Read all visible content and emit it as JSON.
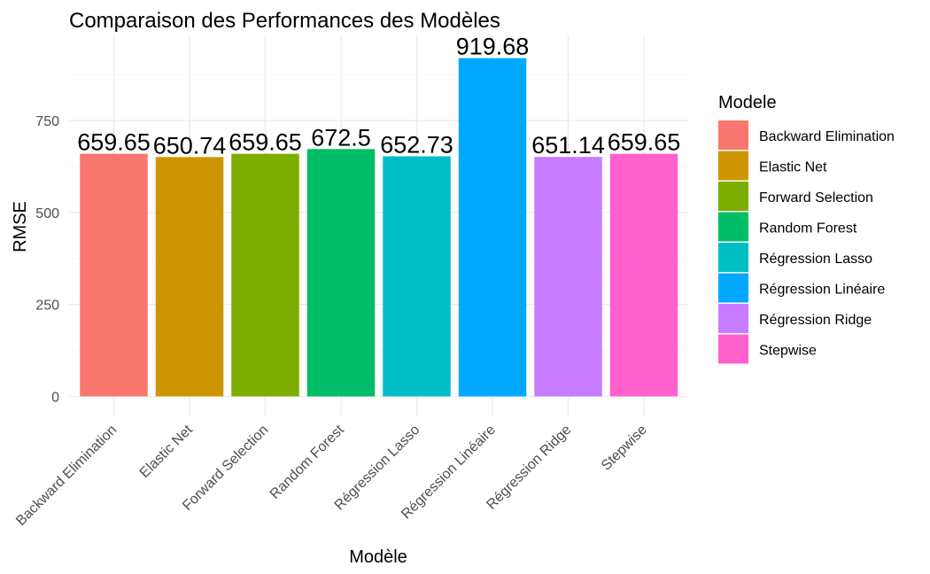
{
  "chart_data": {
    "type": "bar",
    "title": "Comparaison des Performances des Modèles",
    "xlabel": "Modèle",
    "ylabel": "RMSE",
    "categories": [
      "Backward Elimination",
      "Elastic Net",
      "Forward Selection",
      "Random Forest",
      "Régression Lasso",
      "Régression Linéaire",
      "Régression Ridge",
      "Stepwise"
    ],
    "values": [
      659.65,
      650.74,
      659.65,
      672.5,
      652.73,
      919.68,
      651.14,
      659.65
    ],
    "data_labels": [
      "659.65",
      "650.74",
      "659.65",
      "672.5",
      "652.73",
      "919.68",
      "651.14",
      "659.65"
    ],
    "colors": [
      "#F8766D",
      "#CD9600",
      "#7CAE00",
      "#00BE67",
      "#00BFC4",
      "#00A9FF",
      "#C77CFF",
      "#FF61CC"
    ],
    "yticks": [
      0,
      250,
      500,
      750
    ],
    "ylim": [
      0,
      919.68
    ],
    "grid": true,
    "legend": {
      "title": "Modele",
      "position": "right",
      "entries": [
        "Backward Elimination",
        "Elastic Net",
        "Forward Selection",
        "Random Forest",
        "Régression Lasso",
        "Régression Linéaire",
        "Régression Ridge",
        "Stepwise"
      ]
    }
  }
}
